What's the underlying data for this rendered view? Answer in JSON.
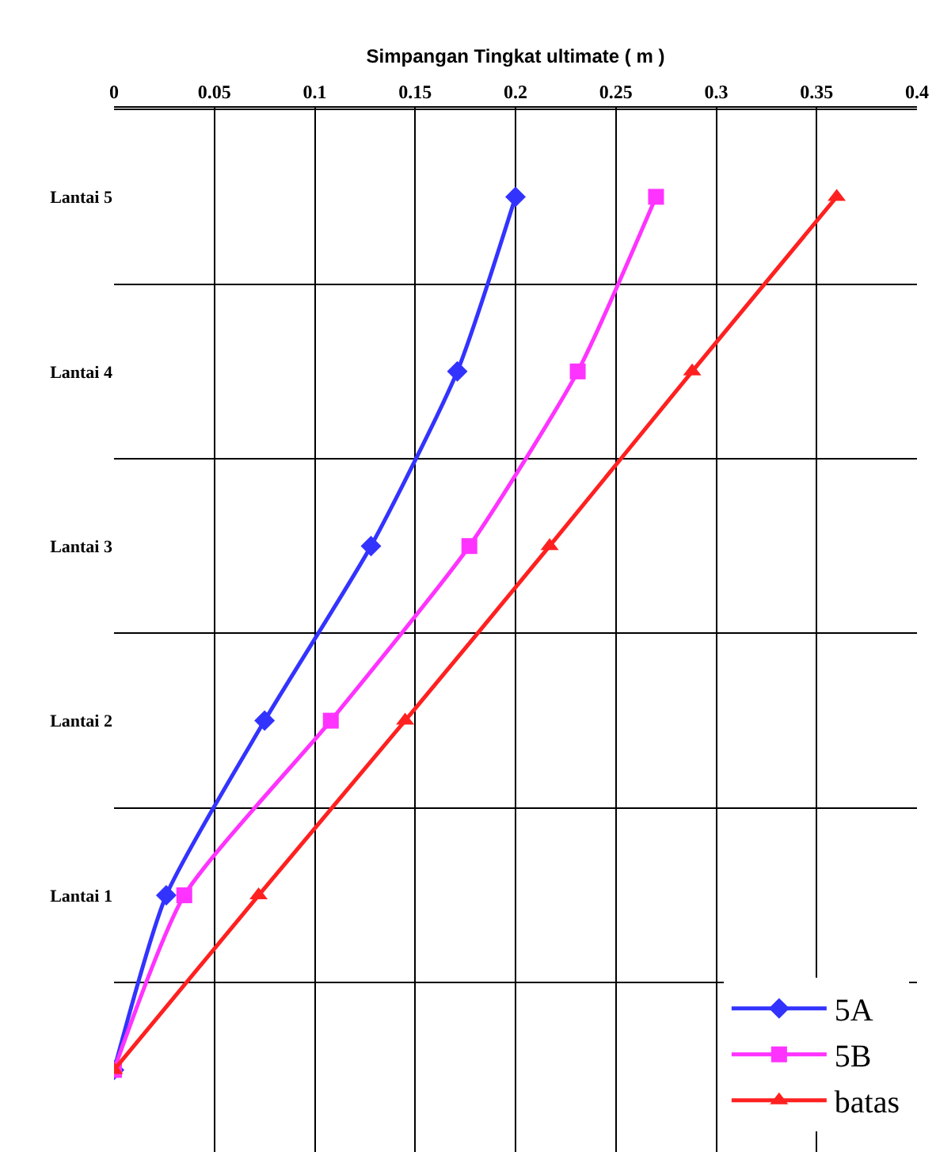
{
  "chart_data": {
    "type": "line",
    "orientation": "horizontal",
    "title": "Simpangan Tingkat ultimate ( m )",
    "categories": [
      "Lantai 5",
      "Lantai 4",
      "Lantai 3",
      "Lantai 2",
      "Lantai 1",
      null
    ],
    "series": [
      {
        "name": "5A",
        "color": "#3333ff",
        "marker": "diamond",
        "values": [
          0.2,
          0.171,
          0.128,
          0.075,
          0.026,
          0
        ]
      },
      {
        "name": "5B",
        "color": "#ff33ff",
        "marker": "square",
        "values": [
          0.27,
          0.231,
          0.177,
          0.108,
          0.035,
          0
        ]
      },
      {
        "name": "batas",
        "color": "#ff2020",
        "marker": "triangle",
        "values": [
          0.36,
          0.288,
          0.217,
          0.145,
          0.072,
          0
        ]
      }
    ],
    "xlim": [
      0,
      0.4
    ],
    "xticks": [
      0,
      0.05,
      0.1,
      0.15,
      0.2,
      0.25,
      0.3,
      0.35,
      0.4
    ],
    "grid": true,
    "legend": "bottom right",
    "line_style": "solid"
  }
}
